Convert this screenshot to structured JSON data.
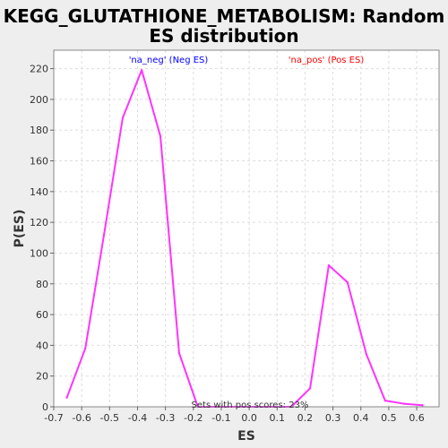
{
  "chart_data": {
    "type": "line",
    "title_line1": "KEGG_GLUTATHIONE_METABOLISM: Random",
    "title_line2": "ES distribution",
    "xlabel": "ES",
    "ylabel": "P(ES)",
    "xlim": [
      -0.7,
      0.68
    ],
    "ylim": [
      0,
      232
    ],
    "x_ticks": [
      -0.7,
      -0.6,
      -0.5,
      -0.4,
      -0.3,
      -0.2,
      -0.1,
      0.0,
      0.1,
      0.2,
      0.3,
      0.4,
      0.5,
      0.6
    ],
    "x_tick_labels": [
      "-0.7",
      "-0.6",
      "-0.5",
      "-0.4",
      "-0.3",
      "-0.2",
      "-0.1",
      "0.0",
      "0.1",
      "0.2",
      "0.3",
      "0.4",
      "0.5",
      "0.6"
    ],
    "y_ticks": [
      0,
      20,
      40,
      60,
      80,
      100,
      120,
      140,
      160,
      180,
      200,
      220
    ],
    "y_tick_labels": [
      "0",
      "20",
      "40",
      "60",
      "80",
      "100",
      "120",
      "140",
      "160",
      "180",
      "200",
      "220"
    ],
    "grid": true,
    "series": [
      {
        "name": "",
        "color": "#ff33ff",
        "x": [
          -0.653,
          -0.587,
          -0.52,
          -0.453,
          -0.385,
          -0.318,
          -0.251,
          -0.184,
          -0.117,
          -0.05,
          0.017,
          0.084,
          0.151,
          0.218,
          0.285,
          0.352,
          0.42,
          0.487,
          0.554,
          0.621
        ],
        "y": [
          6,
          38,
          112,
          188,
          219,
          176,
          35,
          0,
          0,
          0,
          0,
          0,
          0,
          12,
          92,
          81,
          34,
          4,
          2,
          1
        ]
      }
    ],
    "annotations": [
      {
        "id": "neg",
        "text": "'na_neg' (Neg ES)",
        "color": "#0000ff"
      },
      {
        "id": "pos",
        "text": "'na_pos' (Pos ES)",
        "color": "#ff0000"
      },
      {
        "id": "sets",
        "text": "Sets with pos scores: 23%",
        "color": "#333333"
      }
    ]
  }
}
